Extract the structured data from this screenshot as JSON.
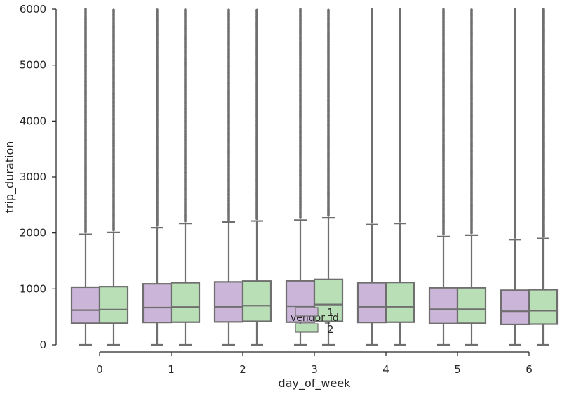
{
  "chart_data": {
    "type": "box",
    "title": "",
    "xlabel": "day_of_week",
    "ylabel": "trip_duration",
    "ylim": [
      0,
      6000
    ],
    "yticks": [
      0,
      1000,
      2000,
      3000,
      4000,
      5000,
      6000
    ],
    "categories": [
      "0",
      "1",
      "2",
      "3",
      "4",
      "5",
      "6"
    ],
    "legend": {
      "title": "vendor_id",
      "placement": "center",
      "entries": [
        "1",
        "2"
      ]
    },
    "series": [
      {
        "name": "1",
        "color": "#cbb5d8",
        "boxes": [
          {
            "whisker_low": 0,
            "q1": 385,
            "median": 620,
            "q3": 1030,
            "whisker_high": 1975
          },
          {
            "whisker_low": 0,
            "q1": 400,
            "median": 665,
            "q3": 1090,
            "whisker_high": 2095
          },
          {
            "whisker_low": 0,
            "q1": 410,
            "median": 680,
            "q3": 1125,
            "whisker_high": 2195
          },
          {
            "whisker_low": 0,
            "q1": 405,
            "median": 690,
            "q3": 1145,
            "whisker_high": 2230
          },
          {
            "whisker_low": 0,
            "q1": 400,
            "median": 680,
            "q3": 1110,
            "whisker_high": 2150
          },
          {
            "whisker_low": 0,
            "q1": 380,
            "median": 635,
            "q3": 1020,
            "whisker_high": 1935
          },
          {
            "whisker_low": 0,
            "q1": 365,
            "median": 600,
            "q3": 975,
            "whisker_high": 1880
          }
        ]
      },
      {
        "name": "2",
        "color": "#b9dfb7",
        "boxes": [
          {
            "whisker_low": 0,
            "q1": 385,
            "median": 630,
            "q3": 1040,
            "whisker_high": 2010
          },
          {
            "whisker_low": 0,
            "q1": 405,
            "median": 675,
            "q3": 1110,
            "whisker_high": 2170
          },
          {
            "whisker_low": 0,
            "q1": 420,
            "median": 700,
            "q3": 1140,
            "whisker_high": 2215
          },
          {
            "whisker_low": 0,
            "q1": 420,
            "median": 720,
            "q3": 1170,
            "whisker_high": 2270
          },
          {
            "whisker_low": 0,
            "q1": 405,
            "median": 680,
            "q3": 1115,
            "whisker_high": 2170
          },
          {
            "whisker_low": 0,
            "q1": 385,
            "median": 635,
            "q3": 1020,
            "whisker_high": 1960
          },
          {
            "whisker_low": 0,
            "q1": 370,
            "median": 610,
            "q3": 985,
            "whisker_high": 1900
          }
        ]
      }
    ],
    "outlier_color": "#6f6f6f",
    "box_edge_color": "#6f6f6f",
    "grid": false
  }
}
